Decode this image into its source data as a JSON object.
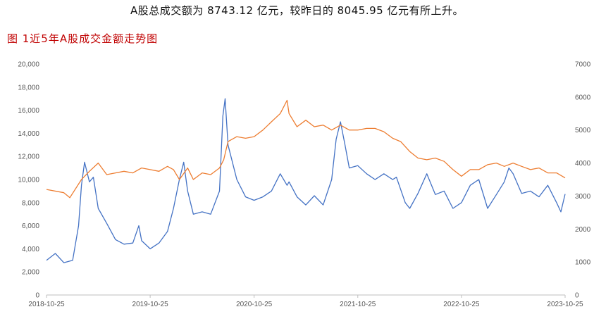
{
  "headline": "A股总成交额为 8743.12 亿元，较昨日的 8045.95 亿元有所上升。",
  "figure_title": "图 1近5年A股成交金额走势图",
  "colors": {
    "left_series": "#4472c4",
    "right_series": "#ed7d31",
    "title": "#c00000",
    "axis": "#bfbfbf"
  },
  "chart_data": {
    "type": "line",
    "title": "图 1近5年A股成交金额走势图",
    "x_ticks": [
      "2018-10-25",
      "2019-10-25",
      "2020-10-25",
      "2021-10-25",
      "2022-10-25",
      "2023-10-25"
    ],
    "y_left": {
      "ticks": [
        "0",
        "2,000",
        "4,000",
        "6,000",
        "8,000",
        "10,000",
        "12,000",
        "14,000",
        "16,000",
        "18,000",
        "20,000"
      ],
      "ylim": [
        0,
        20000
      ]
    },
    "y_right": {
      "ticks": [
        "0",
        "1000",
        "2000",
        "3000",
        "4000",
        "5000",
        "6000",
        "7000"
      ],
      "ylim": [
        0,
        7000
      ]
    },
    "grid": false,
    "legend": "none",
    "series": [
      {
        "axis": "left",
        "color": "#4472c4",
        "x": [
          "2018-10-25",
          "2018-11-25",
          "2018-12-25",
          "2019-01-25",
          "2019-02-15",
          "2019-02-25",
          "2019-03-08",
          "2019-03-25",
          "2019-04-08",
          "2019-04-25",
          "2019-05-25",
          "2019-06-25",
          "2019-07-25",
          "2019-08-25",
          "2019-09-15",
          "2019-09-25",
          "2019-10-25",
          "2019-11-25",
          "2019-12-25",
          "2020-01-15",
          "2020-02-05",
          "2020-02-20",
          "2020-03-05",
          "2020-03-25",
          "2020-04-25",
          "2020-05-25",
          "2020-06-25",
          "2020-07-07",
          "2020-07-15",
          "2020-07-25",
          "2020-08-25",
          "2020-09-25",
          "2020-10-25",
          "2020-11-25",
          "2020-12-25",
          "2021-01-25",
          "2021-02-18",
          "2021-02-25",
          "2021-03-25",
          "2021-04-25",
          "2021-05-25",
          "2021-06-25",
          "2021-07-25",
          "2021-08-10",
          "2021-08-25",
          "2021-09-10",
          "2021-09-25",
          "2021-10-25",
          "2021-11-25",
          "2021-12-25",
          "2022-01-25",
          "2022-02-25",
          "2022-03-10",
          "2022-04-10",
          "2022-04-26",
          "2022-05-25",
          "2022-06-25",
          "2022-07-25",
          "2022-08-25",
          "2022-09-25",
          "2022-10-25",
          "2022-11-25",
          "2022-12-25",
          "2023-01-25",
          "2023-02-25",
          "2023-03-25",
          "2023-04-10",
          "2023-04-25",
          "2023-05-25",
          "2023-06-25",
          "2023-07-25",
          "2023-08-25",
          "2023-09-25",
          "2023-10-10",
          "2023-10-25"
        ],
        "values": [
          3000,
          3600,
          2800,
          3000,
          6000,
          9500,
          11500,
          9800,
          10200,
          7500,
          6200,
          4800,
          4400,
          4500,
          6000,
          4700,
          4000,
          4500,
          5500,
          7500,
          10000,
          11500,
          9000,
          7000,
          7200,
          7000,
          9000,
          15500,
          17000,
          13000,
          10000,
          8500,
          8200,
          8500,
          9000,
          10500,
          9500,
          9800,
          8500,
          7800,
          8600,
          7800,
          10000,
          13500,
          15000,
          13000,
          11000,
          11200,
          10500,
          10000,
          10500,
          10000,
          10200,
          8000,
          7500,
          8800,
          10500,
          8700,
          9000,
          7500,
          8000,
          9500,
          10000,
          7500,
          8700,
          9800,
          11000,
          10500,
          8800,
          9000,
          8500,
          9500,
          8000,
          7200,
          8743
        ]
      },
      {
        "axis": "right",
        "color": "#ed7d31",
        "x": [
          "2018-10-25",
          "2018-12-25",
          "2019-01-15",
          "2019-02-25",
          "2019-03-25",
          "2019-04-25",
          "2019-05-25",
          "2019-06-25",
          "2019-07-25",
          "2019-08-25",
          "2019-09-25",
          "2019-10-25",
          "2019-11-25",
          "2019-12-25",
          "2020-01-15",
          "2020-02-05",
          "2020-03-05",
          "2020-03-25",
          "2020-04-25",
          "2020-05-25",
          "2020-06-25",
          "2020-07-10",
          "2020-07-25",
          "2020-08-25",
          "2020-09-25",
          "2020-10-25",
          "2020-11-25",
          "2020-12-25",
          "2021-01-25",
          "2021-02-18",
          "2021-02-25",
          "2021-03-25",
          "2021-04-25",
          "2021-05-25",
          "2021-06-25",
          "2021-07-25",
          "2021-08-25",
          "2021-09-25",
          "2021-10-25",
          "2021-11-25",
          "2021-12-25",
          "2022-01-25",
          "2022-02-25",
          "2022-03-25",
          "2022-04-26",
          "2022-05-25",
          "2022-06-25",
          "2022-07-25",
          "2022-08-25",
          "2022-09-25",
          "2022-10-25",
          "2022-11-25",
          "2022-12-25",
          "2023-01-25",
          "2023-02-25",
          "2023-03-25",
          "2023-04-25",
          "2023-05-25",
          "2023-06-25",
          "2023-07-25",
          "2023-08-25",
          "2023-09-25",
          "2023-10-25"
        ],
        "values": [
          3200,
          3100,
          2950,
          3500,
          3750,
          4000,
          3650,
          3700,
          3750,
          3700,
          3850,
          3800,
          3750,
          3900,
          3800,
          3500,
          3850,
          3500,
          3700,
          3650,
          3850,
          4100,
          4650,
          4800,
          4750,
          4800,
          5000,
          5250,
          5500,
          5900,
          5500,
          5100,
          5300,
          5100,
          5150,
          5000,
          5150,
          5000,
          5000,
          5050,
          5050,
          4950,
          4750,
          4650,
          4350,
          4150,
          4100,
          4150,
          4050,
          3800,
          3600,
          3800,
          3800,
          3950,
          4000,
          3900,
          4000,
          3900,
          3800,
          3850,
          3700,
          3700,
          3550
        ]
      }
    ]
  }
}
